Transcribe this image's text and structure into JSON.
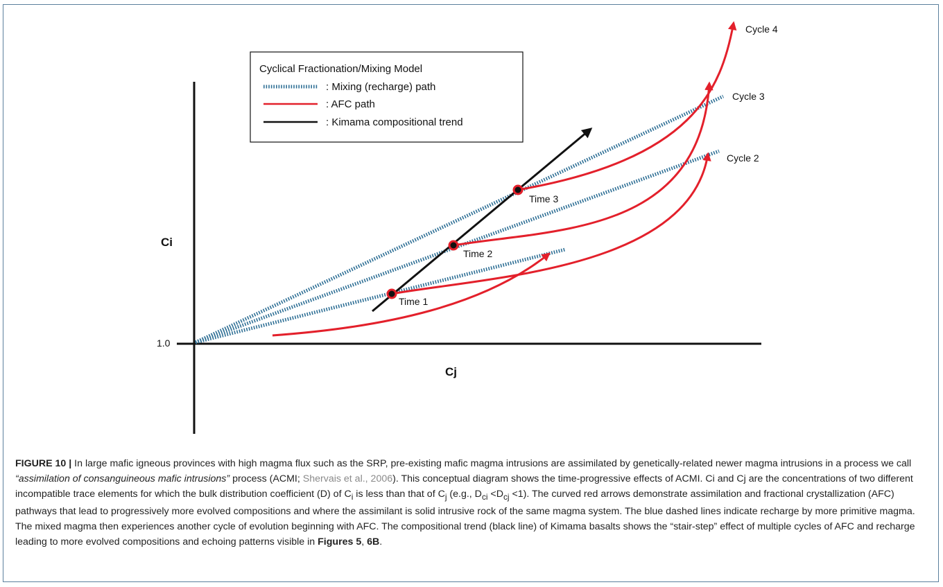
{
  "legend": {
    "title": "Cyclical Fractionation/Mixing Model",
    "items": [
      {
        "label": ": Mixing (recharge) path",
        "style": "dotted",
        "color": "#2e6f95"
      },
      {
        "label": ": AFC path",
        "style": "solid",
        "color": "#e3202b"
      },
      {
        "label": ": Kimama compositional trend",
        "style": "solid",
        "color": "#111111"
      }
    ]
  },
  "axes": {
    "y_label": "Ci",
    "x_label": "Cj",
    "origin_label": "1.0"
  },
  "labels": {
    "cycles": [
      "Cycle 2",
      "Cycle 3",
      "Cycle 4"
    ],
    "times": [
      "Time 1",
      "Time 2",
      "Time 3"
    ]
  },
  "colors": {
    "mixing": "#2e6f95",
    "afc": "#e3202b",
    "trend": "#111111",
    "frame": "#5b7f9d"
  },
  "caption": {
    "label": "FIGURE 10 |",
    "p1": " In large mafic igneous provinces with high magma flux such as the SRP, pre-existing mafic magma intrusions are assimilated by genetically-related newer magma intrusions in a process we call ",
    "quote": "“assimilation of consanguineous mafic intrusions”",
    "p2": " process (ACMI; ",
    "ref": "Shervais et al., 2006",
    "p3": "). This conceptual diagram shows the time-progressive effects of ACMI. Ci and Cj are the concentrations of two different incompatible trace elements for which the bulk distribution coefficient (D) of C",
    "sub_i": "i",
    "p4": " is less than that of C",
    "sub_j": "j",
    "p5": " (e.g., D",
    "sub_ci": "ci",
    "p6": " <D",
    "sub_cj": "cj",
    "p7": " <1). The curved red arrows demonstrate assimilation and fractional crystallization (AFC) pathways that lead to progressively more evolved compositions and where the assimilant is solid intrusive rock of the same magma system. The blue dashed lines indicate recharge by more primitive magma. The mixed magma then experiences another cycle of evolution beginning with AFC. The compositional trend (black line) of Kimama basalts shows the “stair-step” effect of multiple cycles of AFC and recharge leading to more evolved compositions and echoing patterns visible in ",
    "figs": "Figures 5",
    "p8": ", ",
    "figs2": "6B",
    "p9": "."
  }
}
